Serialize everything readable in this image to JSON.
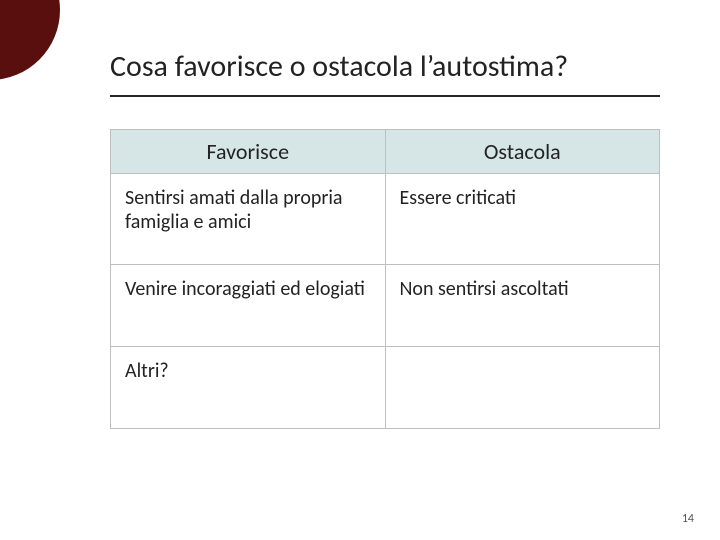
{
  "slide": {
    "title": "Cosa favorisce o ostacola l’autostima?",
    "page_number": "14"
  },
  "table": {
    "columns": [
      "Favorisce",
      "Ostacola"
    ],
    "rows": [
      [
        "Sentirsi amati dalla propria famiglia e amici",
        "Essere criticati"
      ],
      [
        "Venire incoraggiati ed elogiati",
        "Non sentirsi ascoltati"
      ],
      [
        "Altri?",
        ""
      ]
    ],
    "header_bg": "#d6e6e7",
    "border_color": "#bfbfbf",
    "header_fontsize": 22,
    "cell_fontsize": 20,
    "text_color": "#222222"
  },
  "decor": {
    "circle_color": "#5a0f0f"
  }
}
